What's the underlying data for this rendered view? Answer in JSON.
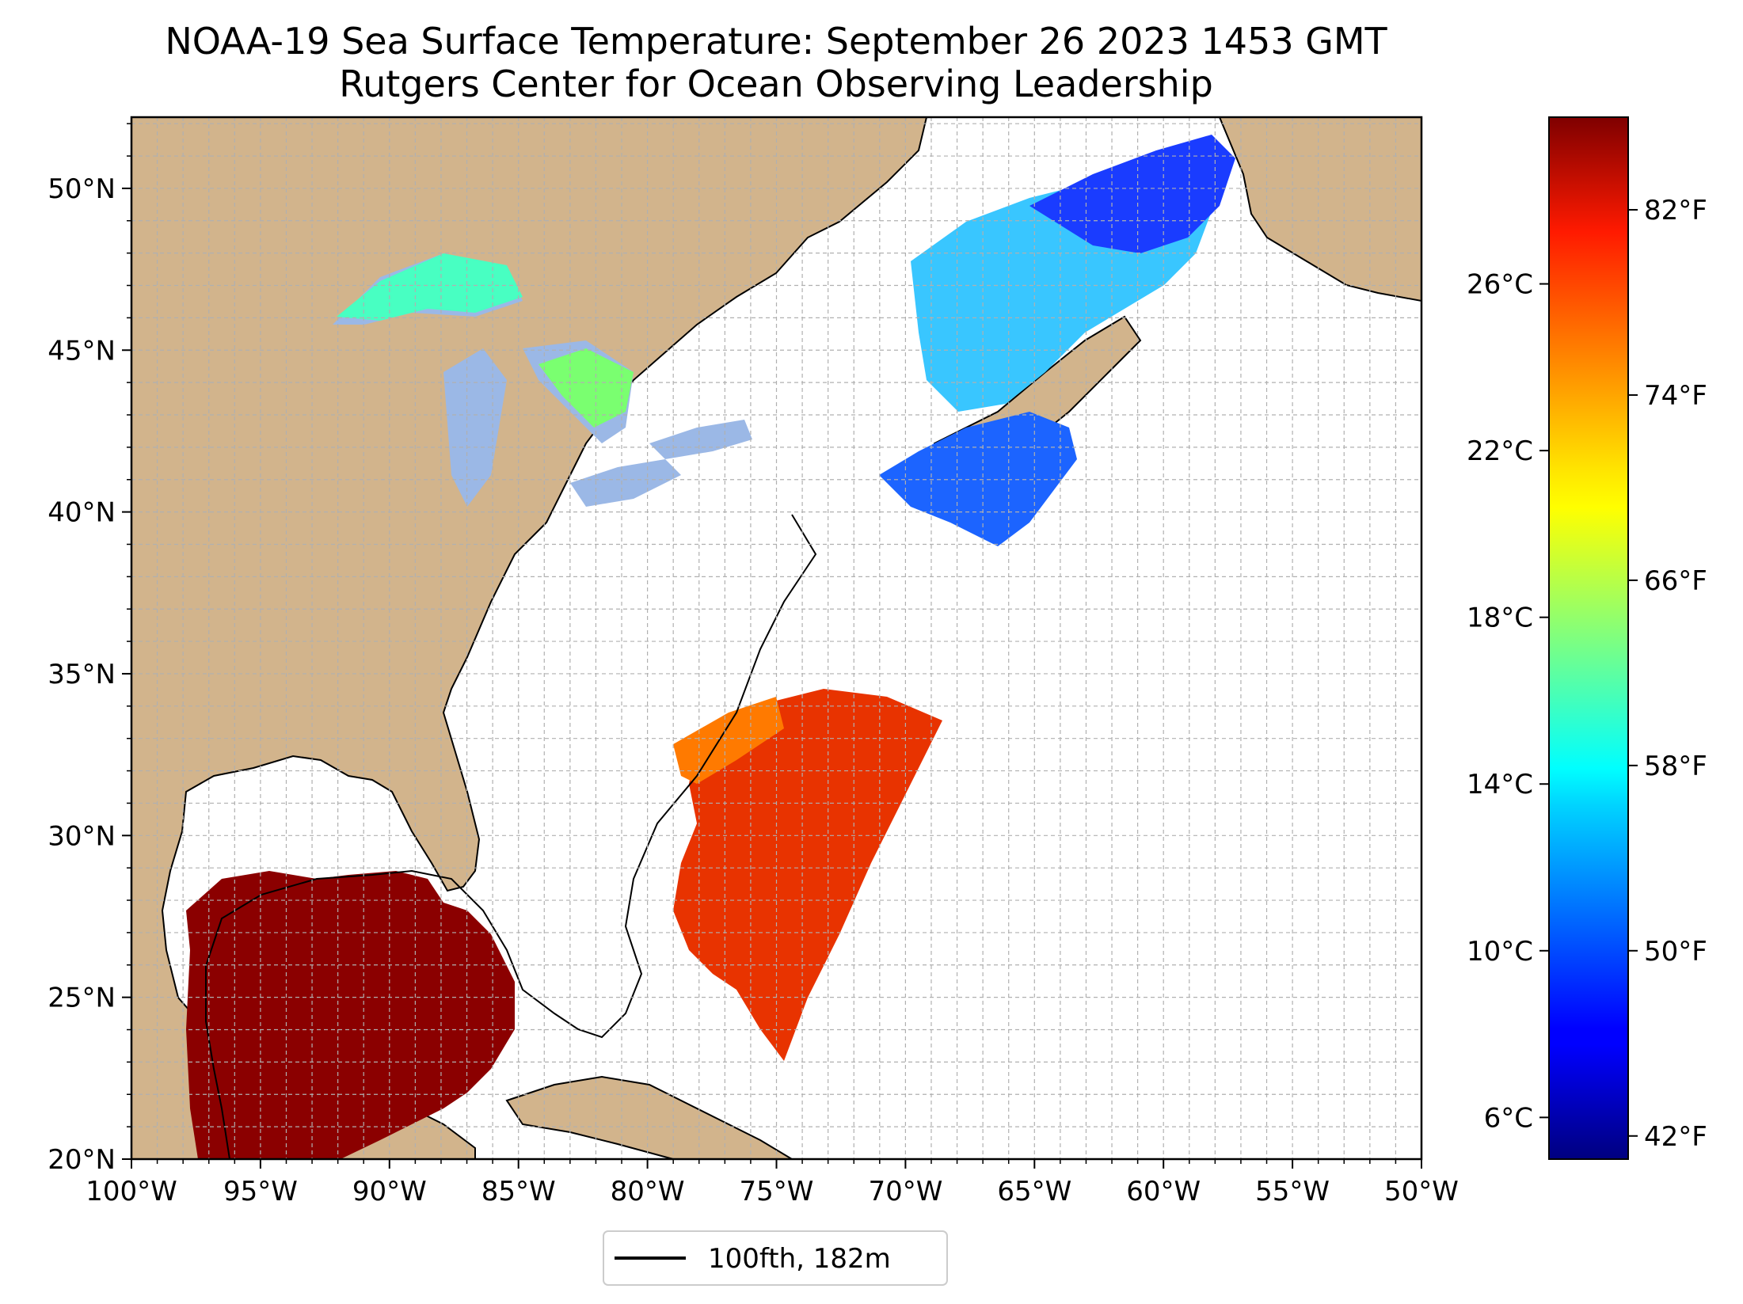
{
  "title": {
    "line1": "NOAA-19 Sea Surface Temperature: September 26 2023 1453 GMT",
    "line2": "Rutgers Center for Ocean Observing Leadership"
  },
  "map": {
    "lon_range": [
      -100,
      -50
    ],
    "lat_range": [
      20,
      52.2
    ],
    "lat_ticks": [
      {
        "value": 50,
        "label": "50°N"
      },
      {
        "value": 45,
        "label": "45°N"
      },
      {
        "value": 40,
        "label": "40°N"
      },
      {
        "value": 35,
        "label": "35°N"
      },
      {
        "value": 30,
        "label": "30°N"
      },
      {
        "value": 25,
        "label": "25°N"
      },
      {
        "value": 20,
        "label": "20°N"
      }
    ],
    "lon_ticks": [
      {
        "value": -100,
        "label": "100°W"
      },
      {
        "value": -95,
        "label": "95°W"
      },
      {
        "value": -90,
        "label": "90°W"
      },
      {
        "value": -85,
        "label": "85°W"
      },
      {
        "value": -80,
        "label": "80°W"
      },
      {
        "value": -75,
        "label": "75°W"
      },
      {
        "value": -70,
        "label": "70°W"
      },
      {
        "value": -65,
        "label": "65°W"
      },
      {
        "value": -60,
        "label": "60°W"
      },
      {
        "value": -55,
        "label": "55°W"
      },
      {
        "value": -50,
        "label": "50°W"
      }
    ],
    "grid": true,
    "colors": {
      "land": "#d2b48c",
      "lakes": "#9bb8e6",
      "ocean": "#ffffff",
      "grid": "#b0b0b0"
    }
  },
  "colorbar": {
    "colormap": "jet",
    "range_c": [
      5.0,
      30.0
    ],
    "celsius_ticks": [
      {
        "value": 6,
        "label": "6°C"
      },
      {
        "value": 10,
        "label": "10°C"
      },
      {
        "value": 14,
        "label": "14°C"
      },
      {
        "value": 18,
        "label": "18°C"
      },
      {
        "value": 22,
        "label": "22°C"
      },
      {
        "value": 26,
        "label": "26°C"
      }
    ],
    "fahrenheit_ticks": [
      {
        "value": 42,
        "label": "42°F"
      },
      {
        "value": 50,
        "label": "50°F"
      },
      {
        "value": 58,
        "label": "58°F"
      },
      {
        "value": 66,
        "label": "66°F"
      },
      {
        "value": 74,
        "label": "74°F"
      },
      {
        "value": 82,
        "label": "82°F"
      }
    ]
  },
  "legend": {
    "label": "100fth, 182m",
    "placement": "bottom-center"
  }
}
